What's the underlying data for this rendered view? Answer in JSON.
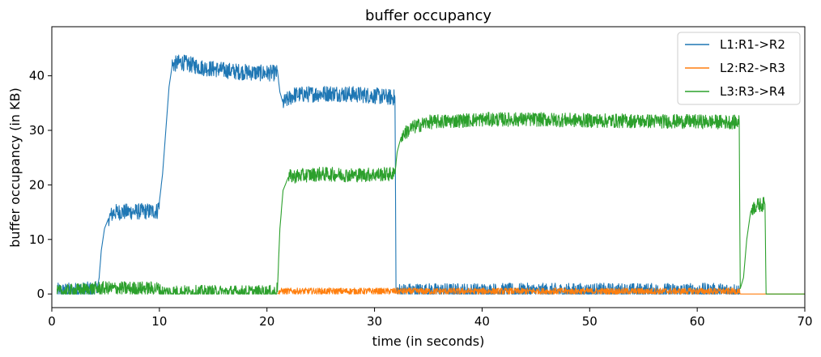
{
  "chart_data": {
    "type": "line",
    "title": "buffer occupancy",
    "xlabel": "time (in seconds)",
    "ylabel": "buffer occupancy (in KB)",
    "xlim": [
      0,
      70
    ],
    "ylim": [
      -2.5,
      49
    ],
    "xticks": [
      0,
      10,
      20,
      30,
      40,
      50,
      60,
      70
    ],
    "yticks": [
      0,
      10,
      20,
      30,
      40
    ],
    "grid": false,
    "legend_position": "top-right",
    "series": [
      {
        "name": "L1:R1->R2",
        "color": "#1f77b4",
        "points": [
          [
            0.5,
            0.5
          ],
          [
            4.2,
            0.8
          ],
          [
            4.4,
            3
          ],
          [
            4.6,
            8
          ],
          [
            4.9,
            12
          ],
          [
            5.3,
            14
          ],
          [
            5.8,
            15
          ],
          [
            9.8,
            15.2
          ],
          [
            10.0,
            17
          ],
          [
            10.3,
            22
          ],
          [
            10.6,
            30
          ],
          [
            10.9,
            38
          ],
          [
            11.2,
            42
          ],
          [
            12,
            42.5
          ],
          [
            14,
            41.5
          ],
          [
            17,
            40.8
          ],
          [
            19.5,
            40.5
          ],
          [
            21.0,
            40.5
          ],
          [
            21.2,
            37
          ],
          [
            21.5,
            35
          ],
          [
            22.5,
            36.5
          ],
          [
            26,
            36.8
          ],
          [
            29,
            36.5
          ],
          [
            31.9,
            36
          ],
          [
            32.0,
            0.5
          ],
          [
            35,
            0.5
          ],
          [
            40,
            0.5
          ],
          [
            45,
            0.5
          ],
          [
            50,
            0.5
          ],
          [
            55,
            0.5
          ],
          [
            60,
            0.5
          ],
          [
            63.8,
            0.5
          ],
          [
            64.0,
            0
          ]
        ],
        "noise": 1.5
      },
      {
        "name": "L2:R2->R3",
        "color": "#ff7f0e",
        "points": [
          [
            21.0,
            0
          ],
          [
            21.2,
            0.5
          ],
          [
            30,
            0.5
          ],
          [
            40,
            0.5
          ],
          [
            50,
            0.5
          ],
          [
            60,
            0.5
          ],
          [
            63.9,
            0.5
          ],
          [
            64.0,
            0
          ],
          [
            70,
            0
          ]
        ],
        "noise": 0.6
      },
      {
        "name": "L3:R3->R4",
        "color": "#2ca02c",
        "points": [
          [
            0.5,
            0.3
          ],
          [
            4.3,
            1
          ],
          [
            10,
            1
          ],
          [
            10.1,
            0.3
          ],
          [
            20.9,
            0.3
          ],
          [
            21.0,
            2
          ],
          [
            21.2,
            12
          ],
          [
            21.5,
            19
          ],
          [
            22,
            21.5
          ],
          [
            25,
            22
          ],
          [
            28,
            21.8
          ],
          [
            31.9,
            22
          ],
          [
            32.1,
            26
          ],
          [
            32.5,
            29
          ],
          [
            33.5,
            30.5
          ],
          [
            35,
            31.5
          ],
          [
            40,
            32
          ],
          [
            45,
            32
          ],
          [
            50,
            31.8
          ],
          [
            55,
            31.7
          ],
          [
            60,
            31.6
          ],
          [
            63.9,
            31.5
          ],
          [
            64.0,
            1
          ],
          [
            64.3,
            3
          ],
          [
            64.6,
            10
          ],
          [
            65,
            15.5
          ],
          [
            65.5,
            16.2
          ],
          [
            66.3,
            16.5
          ],
          [
            66.4,
            0
          ],
          [
            70,
            0
          ]
        ],
        "noise": 1.3
      }
    ]
  }
}
